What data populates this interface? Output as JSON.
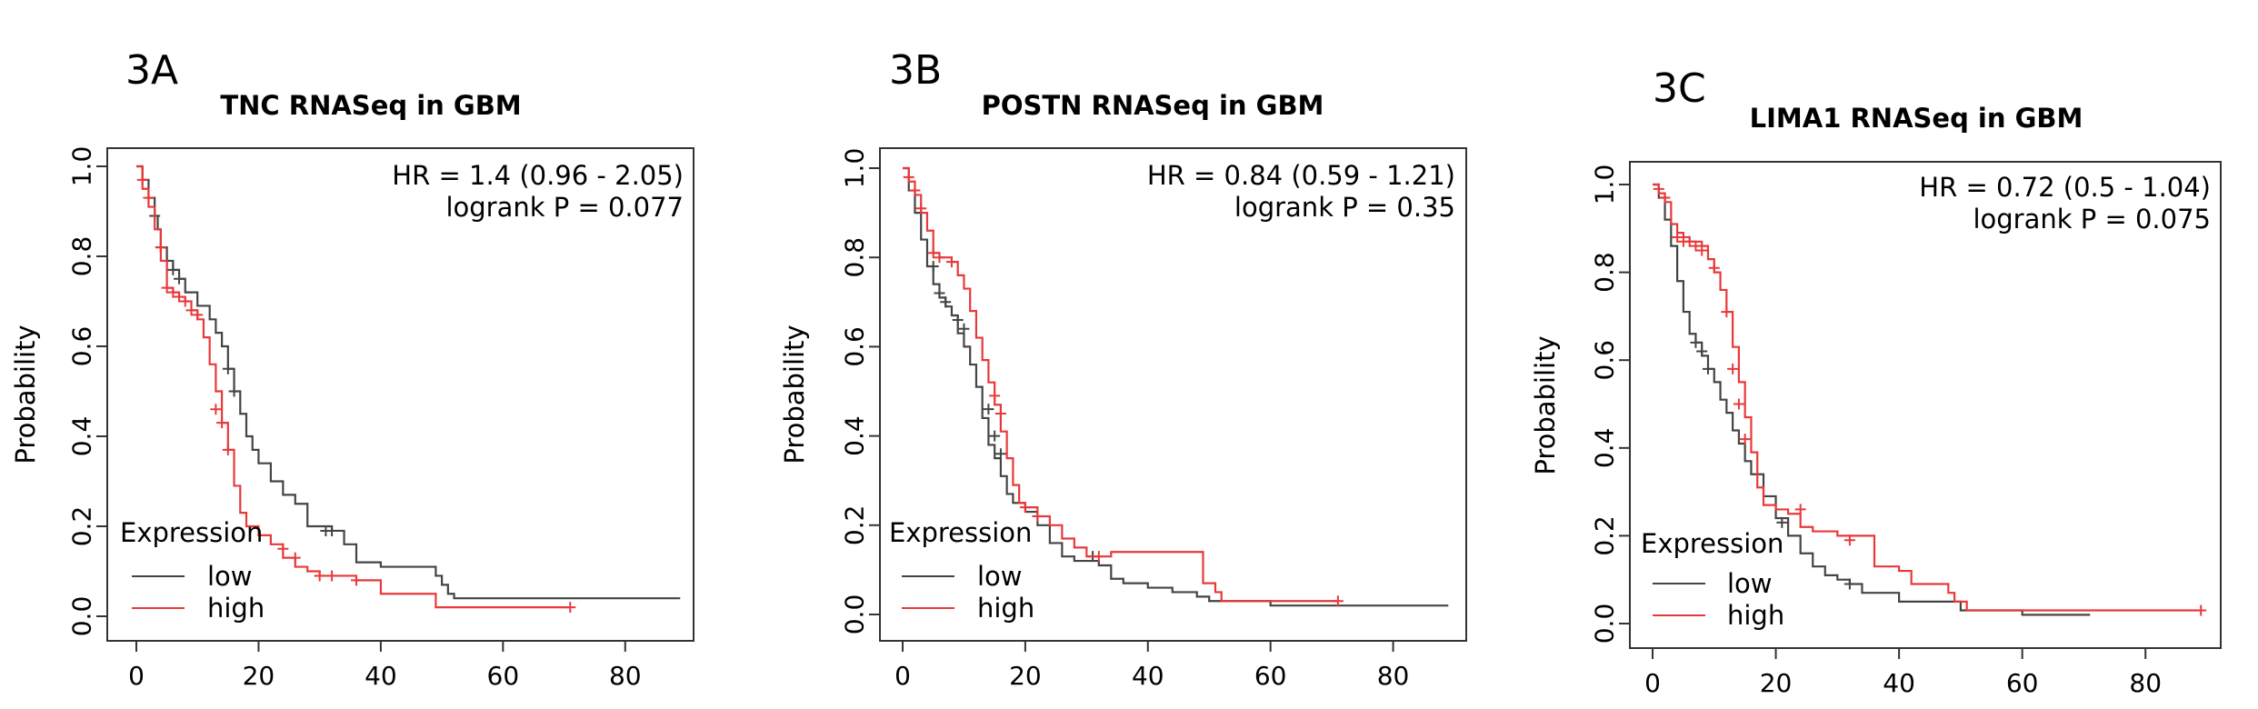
{
  "chart_data": [
    {
      "panel": "3A",
      "type": "line",
      "title": "TNC RNASeq in GBM",
      "stats": {
        "hr": "HR = 1.4 (0.96 - 2.05)",
        "logrank": "logrank P = 0.077"
      },
      "xlabel": "",
      "ylabel": "Probability",
      "xlim": [
        0,
        90
      ],
      "ylim": [
        0,
        1
      ],
      "xticks": [
        "0",
        "20",
        "40",
        "60",
        "80"
      ],
      "yticks": [
        "0.0",
        "0.2",
        "0.4",
        "0.6",
        "0.8",
        "1.0"
      ],
      "legend": {
        "title": "Expression",
        "position": "bottom-left"
      },
      "series": [
        {
          "name": "low",
          "color": "#444444",
          "x": [
            0,
            1,
            2,
            3,
            3.5,
            4,
            5,
            6,
            7,
            8,
            10,
            12,
            13,
            14,
            15,
            16,
            17,
            18,
            19,
            20,
            22,
            24,
            26,
            28,
            32,
            34,
            36,
            40,
            48,
            49,
            50,
            51,
            52,
            89
          ],
          "y": [
            1.0,
            0.97,
            0.93,
            0.89,
            0.86,
            0.82,
            0.79,
            0.77,
            0.75,
            0.72,
            0.69,
            0.66,
            0.63,
            0.6,
            0.55,
            0.5,
            0.45,
            0.4,
            0.37,
            0.34,
            0.3,
            0.27,
            0.25,
            0.2,
            0.19,
            0.16,
            0.12,
            0.11,
            0.11,
            0.09,
            0.07,
            0.05,
            0.04,
            0.04
          ],
          "censors": [
            [
              3,
              0.89
            ],
            [
              4,
              0.82
            ],
            [
              5,
              0.79
            ],
            [
              6,
              0.77
            ],
            [
              7,
              0.75
            ],
            [
              15,
              0.55
            ],
            [
              16,
              0.5
            ],
            [
              31,
              0.19
            ],
            [
              32,
              0.19
            ]
          ]
        },
        {
          "name": "high",
          "color": "#e8393a",
          "x": [
            0,
            1,
            2,
            3,
            4,
            5,
            6,
            7,
            8,
            9,
            10,
            11,
            12,
            13,
            14,
            15,
            16,
            17,
            18,
            20,
            22,
            24,
            26,
            28,
            30,
            32,
            36,
            40,
            48,
            49,
            71
          ],
          "y": [
            1.0,
            0.95,
            0.91,
            0.86,
            0.79,
            0.73,
            0.72,
            0.71,
            0.7,
            0.68,
            0.66,
            0.62,
            0.56,
            0.5,
            0.43,
            0.37,
            0.29,
            0.23,
            0.2,
            0.18,
            0.16,
            0.13,
            0.11,
            0.1,
            0.09,
            0.09,
            0.08,
            0.05,
            0.05,
            0.02,
            0.02
          ],
          "censors": [
            [
              1,
              0.97
            ],
            [
              2,
              0.93
            ],
            [
              4,
              0.82
            ],
            [
              5,
              0.73
            ],
            [
              6,
              0.72
            ],
            [
              7,
              0.71
            ],
            [
              8,
              0.7
            ],
            [
              9,
              0.68
            ],
            [
              10,
              0.67
            ],
            [
              13,
              0.46
            ],
            [
              14,
              0.43
            ],
            [
              15,
              0.37
            ],
            [
              24,
              0.15
            ],
            [
              26,
              0.13
            ],
            [
              30,
              0.09
            ],
            [
              32,
              0.09
            ],
            [
              36,
              0.08
            ],
            [
              71,
              0.02
            ]
          ]
        }
      ]
    },
    {
      "panel": "3B",
      "type": "line",
      "title": "POSTN RNASeq in GBM",
      "stats": {
        "hr": "HR = 0.84 (0.59 - 1.21)",
        "logrank": "logrank P = 0.35"
      },
      "xlabel": "",
      "ylabel": "Probability",
      "xlim": [
        0,
        90
      ],
      "ylim": [
        0,
        1
      ],
      "xticks": [
        "0",
        "20",
        "40",
        "60",
        "80"
      ],
      "yticks": [
        "0.0",
        "0.2",
        "0.4",
        "0.6",
        "0.8",
        "1.0"
      ],
      "legend": {
        "title": "Expression",
        "position": "bottom-left"
      },
      "series": [
        {
          "name": "low",
          "color": "#444444",
          "x": [
            0,
            1,
            2,
            3,
            4,
            5,
            6,
            7,
            8,
            9,
            10,
            11,
            12,
            13,
            14,
            15,
            16,
            17,
            18,
            20,
            22,
            24,
            26,
            28,
            30,
            32,
            34,
            36,
            40,
            44,
            48,
            50,
            60,
            70,
            89
          ],
          "y": [
            1.0,
            0.95,
            0.9,
            0.84,
            0.78,
            0.74,
            0.71,
            0.69,
            0.67,
            0.63,
            0.6,
            0.56,
            0.51,
            0.44,
            0.38,
            0.35,
            0.31,
            0.27,
            0.25,
            0.23,
            0.2,
            0.16,
            0.13,
            0.12,
            0.12,
            0.11,
            0.08,
            0.07,
            0.06,
            0.05,
            0.04,
            0.03,
            0.02,
            0.02,
            0.02
          ],
          "censors": [
            [
              5,
              0.78
            ],
            [
              6,
              0.72
            ],
            [
              7,
              0.7
            ],
            [
              9,
              0.66
            ],
            [
              10,
              0.64
            ],
            [
              14,
              0.46
            ],
            [
              15,
              0.4
            ],
            [
              16,
              0.36
            ],
            [
              31,
              0.13
            ]
          ]
        },
        {
          "name": "high",
          "color": "#e8393a",
          "x": [
            0,
            1,
            2,
            3,
            4,
            5,
            6,
            7,
            8,
            9,
            10,
            11,
            12,
            13,
            14,
            15,
            16,
            17,
            18,
            19,
            20,
            22,
            24,
            26,
            28,
            30,
            32,
            34,
            40,
            48,
            49,
            51,
            52,
            71
          ],
          "y": [
            1.0,
            0.97,
            0.94,
            0.9,
            0.86,
            0.81,
            0.8,
            0.8,
            0.79,
            0.76,
            0.73,
            0.68,
            0.62,
            0.57,
            0.52,
            0.47,
            0.41,
            0.35,
            0.29,
            0.25,
            0.24,
            0.22,
            0.2,
            0.17,
            0.15,
            0.13,
            0.13,
            0.14,
            0.14,
            0.14,
            0.07,
            0.05,
            0.03,
            0.03
          ],
          "censors": [
            [
              1,
              0.98
            ],
            [
              2,
              0.95
            ],
            [
              3,
              0.91
            ],
            [
              5,
              0.81
            ],
            [
              6,
              0.8
            ],
            [
              8,
              0.79
            ],
            [
              15,
              0.49
            ],
            [
              16,
              0.45
            ],
            [
              20,
              0.24
            ],
            [
              22,
              0.22
            ],
            [
              32,
              0.13
            ],
            [
              71,
              0.03
            ]
          ]
        }
      ]
    },
    {
      "panel": "3C",
      "type": "line",
      "title": "LIMA1 RNASeq in GBM",
      "stats": {
        "hr": "HR = 0.72 (0.5 - 1.04)",
        "logrank": "logrank P = 0.075"
      },
      "xlabel": "",
      "ylabel": "Probability",
      "xlim": [
        0,
        90
      ],
      "ylim": [
        0,
        1
      ],
      "xticks": [
        "0",
        "20",
        "40",
        "60",
        "80"
      ],
      "yticks": [
        "0.0",
        "0.2",
        "0.4",
        "0.6",
        "0.8",
        "1.0"
      ],
      "legend": {
        "title": "Expression",
        "position": "bottom-left"
      },
      "series": [
        {
          "name": "low",
          "color": "#444444",
          "x": [
            0,
            1,
            2,
            3,
            4,
            5,
            6,
            7,
            8,
            9,
            10,
            11,
            12,
            13,
            14,
            15,
            16,
            18,
            20,
            22,
            24,
            26,
            28,
            30,
            32,
            34,
            40,
            50,
            60,
            71
          ],
          "y": [
            1.0,
            0.97,
            0.92,
            0.86,
            0.78,
            0.71,
            0.66,
            0.64,
            0.61,
            0.58,
            0.55,
            0.51,
            0.48,
            0.44,
            0.41,
            0.37,
            0.34,
            0.29,
            0.24,
            0.2,
            0.16,
            0.13,
            0.11,
            0.1,
            0.09,
            0.07,
            0.05,
            0.03,
            0.02,
            0.02
          ],
          "censors": [
            [
              7,
              0.64
            ],
            [
              8,
              0.62
            ],
            [
              9,
              0.58
            ],
            [
              21,
              0.23
            ],
            [
              32,
              0.09
            ]
          ]
        },
        {
          "name": "high",
          "color": "#e8393a",
          "x": [
            0,
            1,
            2,
            3,
            4,
            5,
            6,
            7,
            8,
            9,
            10,
            11,
            12,
            13,
            14,
            15,
            16,
            17,
            18,
            19,
            20,
            22,
            24,
            26,
            28,
            30,
            34,
            36,
            38,
            40,
            42,
            48,
            49,
            51,
            89
          ],
          "y": [
            1.0,
            0.98,
            0.96,
            0.91,
            0.89,
            0.88,
            0.87,
            0.87,
            0.86,
            0.83,
            0.8,
            0.76,
            0.71,
            0.63,
            0.55,
            0.47,
            0.39,
            0.31,
            0.27,
            0.27,
            0.26,
            0.25,
            0.22,
            0.21,
            0.21,
            0.2,
            0.2,
            0.13,
            0.13,
            0.12,
            0.09,
            0.07,
            0.05,
            0.03,
            0.03
          ],
          "censors": [
            [
              1,
              0.99
            ],
            [
              2,
              0.97
            ],
            [
              4,
              0.88
            ],
            [
              5,
              0.87
            ],
            [
              6,
              0.87
            ],
            [
              7,
              0.86
            ],
            [
              8,
              0.85
            ],
            [
              10,
              0.81
            ],
            [
              12,
              0.71
            ],
            [
              13,
              0.58
            ],
            [
              14,
              0.5
            ],
            [
              15,
              0.42
            ],
            [
              24,
              0.26
            ],
            [
              32,
              0.19
            ],
            [
              89,
              0.03
            ]
          ]
        }
      ]
    }
  ]
}
